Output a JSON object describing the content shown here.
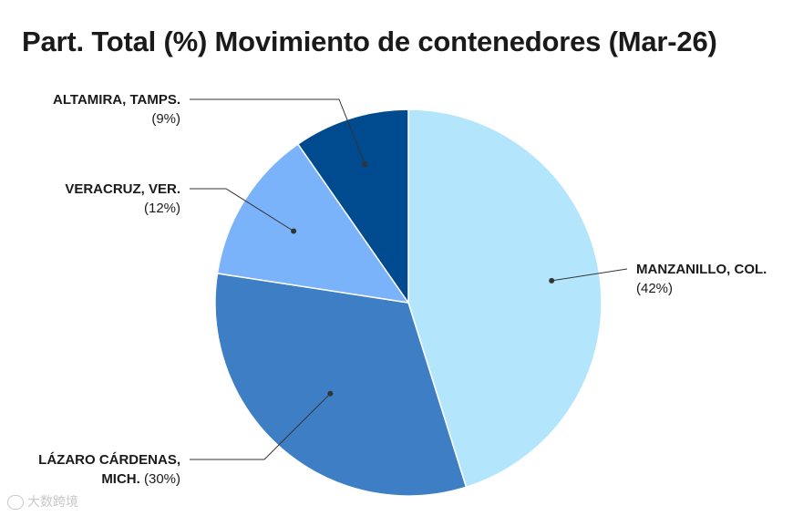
{
  "chart_data": {
    "type": "pie",
    "title": "Part. Total (%) Movimiento de contenedores (Mar-26)",
    "slices": [
      {
        "name": "MANZANILLO, COL.",
        "value": 42,
        "label_name_lines": [
          "MANZANILLO, COL."
        ],
        "label_value": "(42%)",
        "color": "#b3e5fc"
      },
      {
        "name": "LÁZARO CÁRDENAS, MICH.",
        "value": 30,
        "label_name_lines": [
          "LÁZARO CÁRDENAS,",
          "MICH."
        ],
        "label_value": "(30%)",
        "color": "#3e7ec4"
      },
      {
        "name": "VERACRUZ, VER.",
        "value": 12,
        "label_name_lines": [
          "VERACRUZ, VER."
        ],
        "label_value": "(12%)",
        "color": "#7bb3fa"
      },
      {
        "name": "ALTAMIRA, TAMPS.",
        "value": 9,
        "label_name_lines": [
          "ALTAMIRA, TAMPS."
        ],
        "label_value": "(9%)",
        "color": "#004a8f"
      }
    ],
    "legend": "none",
    "grid": false
  },
  "watermark": {
    "text": "大数跨境"
  }
}
